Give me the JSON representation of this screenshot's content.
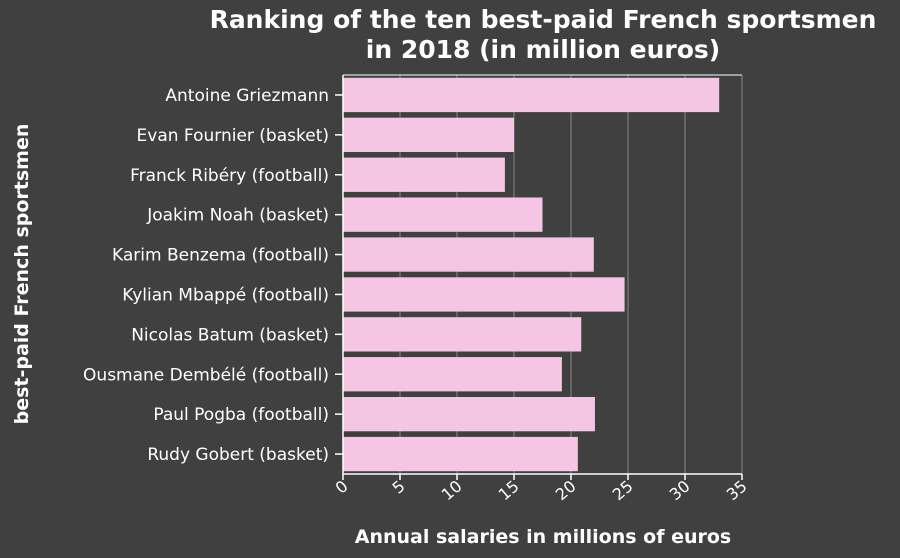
{
  "chart_data": {
    "type": "bar",
    "orientation": "horizontal",
    "title": "Ranking of the ten best-paid French sportsmen in 2018 (in million euros)",
    "title_lines": [
      "Ranking of the ten best-paid French sportsmen",
      "in 2018 (in million euros)"
    ],
    "xlabel": "Annual salaries in millions of euros",
    "ylabel": "best-paid French sportsmen",
    "xlim": [
      0,
      35
    ],
    "xticks": [
      0,
      5,
      10,
      15,
      20,
      25,
      30,
      35
    ],
    "grid": "vertical",
    "categories": [
      "Antoine Griezmann",
      "Evan Fournier (basket)",
      "Franck Ribéry (football)",
      "Joakim Noah (basket)",
      "Karim Benzema (football)",
      "Kylian Mbappé (football)",
      "Nicolas Batum (basket)",
      "Ousmane Dembélé (football)",
      "Paul Pogba (football)",
      "Rudy Gobert (basket)"
    ],
    "values": [
      33,
      15,
      14.2,
      17.5,
      22,
      24.7,
      20.9,
      19.2,
      22.1,
      20.6
    ],
    "bar_color": "#f5c6e4",
    "background_color": "#404040",
    "grid_color": "#888888"
  }
}
